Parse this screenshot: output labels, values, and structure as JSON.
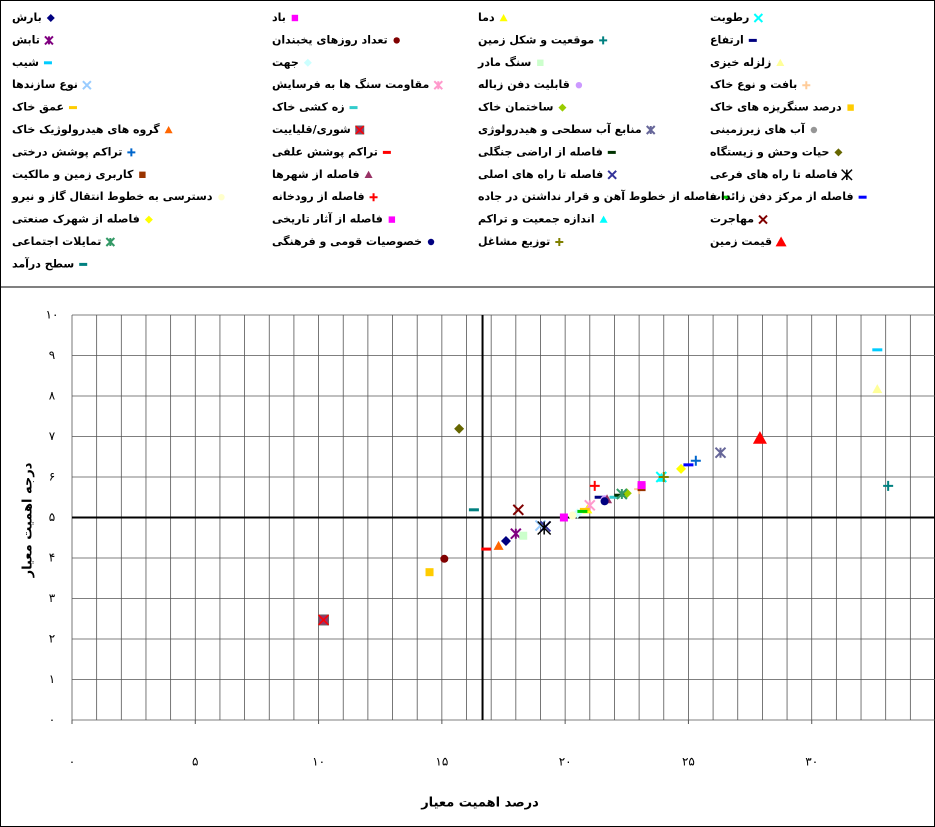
{
  "chart_data": {
    "type": "scatter",
    "xlabel": "درصد اهمیت معیار",
    "ylabel": "درجه اهمیت معیار",
    "xlim": [
      0,
      35
    ],
    "ylim": [
      0,
      10
    ],
    "xticks": [
      {
        "value": 0,
        "label": "۰"
      },
      {
        "value": 5,
        "label": "۵"
      },
      {
        "value": 10,
        "label": "۱۰"
      },
      {
        "value": 15,
        "label": "۱۵"
      },
      {
        "value": 20,
        "label": "۲۰"
      },
      {
        "value": 25,
        "label": "۲۵"
      },
      {
        "value": 30,
        "label": "۳۰"
      }
    ],
    "yticks": [
      {
        "value": 0,
        "label": "۰"
      },
      {
        "value": 1,
        "label": "۱"
      },
      {
        "value": 2,
        "label": "۲"
      },
      {
        "value": 3,
        "label": "۳"
      },
      {
        "value": 4,
        "label": "۴"
      },
      {
        "value": 5,
        "label": "۵"
      },
      {
        "value": 6,
        "label": "۶"
      },
      {
        "value": 7,
        "label": "۷"
      },
      {
        "value": 8,
        "label": "۸"
      },
      {
        "value": 9,
        "label": "۹"
      },
      {
        "value": 10,
        "label": "۱۰"
      }
    ],
    "grid": true,
    "x_grid_step": 1,
    "x_reference": 16.65,
    "y_reference": 5,
    "legend": "top",
    "series": [
      {
        "name": "بارش",
        "color": "#000080",
        "marker": "diamond",
        "x": [
          17.6
        ],
        "values": [
          4.42
        ]
      },
      {
        "name": "باد",
        "color": "#ff00ff",
        "marker": "square",
        "x": [
          19.95
        ],
        "values": [
          5.0
        ]
      },
      {
        "name": "دما",
        "color": "#ffff00",
        "marker": "triangle",
        "x": [
          20.9
        ],
        "values": [
          5.2
        ]
      },
      {
        "name": "رطوبت",
        "color": "#00ffff",
        "marker": "x",
        "x": [
          23.9
        ],
        "values": [
          6.0
        ]
      },
      {
        "name": "تابش",
        "color": "#800080",
        "marker": "star",
        "x": [
          18.0
        ],
        "values": [
          4.6
        ]
      },
      {
        "name": "تعداد روزهای یخبندان",
        "color": "#800000",
        "marker": "circle",
        "x": [
          15.1
        ],
        "values": [
          3.98
        ]
      },
      {
        "name": "موقعیت و شکل زمین",
        "color": "#008080",
        "marker": "plus",
        "x": [
          33.1
        ],
        "values": [
          5.78
        ]
      },
      {
        "name": "ارتفاع",
        "color": "#000080",
        "marker": "dash",
        "x": [
          21.4
        ],
        "values": [
          5.5
        ]
      },
      {
        "name": "شیب",
        "color": "#00ccff",
        "marker": "dash",
        "x": [
          32.66
        ],
        "values": [
          9.14
        ]
      },
      {
        "name": "جهت",
        "color": "#ccffff",
        "marker": "diamond",
        "x": [
          20.5
        ],
        "values": [
          5.1
        ]
      },
      {
        "name": "سنگ مادر",
        "color": "#ccffcc",
        "marker": "square",
        "x": [
          18.3
        ],
        "values": [
          4.55
        ]
      },
      {
        "name": "زلزله خیزی",
        "color": "#ffff99",
        "marker": "triangle",
        "x": [
          32.66
        ],
        "values": [
          8.17
        ]
      },
      {
        "name": "نوع سازندها",
        "color": "#99ccff",
        "marker": "x",
        "x": [
          19.0
        ],
        "values": [
          4.8
        ]
      },
      {
        "name": "مقاومت سنگ ها به فرسایش",
        "color": "#ff99cc",
        "marker": "star",
        "x": [
          21.0
        ],
        "values": [
          5.3
        ]
      },
      {
        "name": "قابلیت دفن زباله",
        "color": "#cc99ff",
        "marker": "circle",
        "x": [
          21.6
        ],
        "values": [
          5.45
        ]
      },
      {
        "name": "بافت و نوع خاک",
        "color": "#ffcc99",
        "marker": "plus",
        "x": [
          23.0
        ],
        "values": [
          5.7
        ]
      },
      {
        "name": "عمق خاک",
        "color": "#ffcc00",
        "marker": "dash",
        "x": [
          20.8
        ],
        "values": [
          5.2
        ]
      },
      {
        "name": "زه کشی خاک",
        "color": "#33cccc",
        "marker": "dash",
        "x": [
          22.0
        ],
        "values": [
          5.5
        ]
      },
      {
        "name": "ساختمان خاک",
        "color": "#99cc00",
        "marker": "diamond",
        "x": [
          22.5
        ],
        "values": [
          5.6
        ]
      },
      {
        "name": "درصد سنگریزه های خاک",
        "color": "#ffcc00",
        "marker": "square",
        "x": [
          14.5
        ],
        "values": [
          3.65
        ]
      },
      {
        "name": "گروه های هیدرولوژیک خاک",
        "color": "#ff6600",
        "marker": "triangle",
        "x": [
          17.3
        ],
        "values": [
          4.3
        ]
      },
      {
        "name": "شوری/قلیاییت",
        "color": "#993366",
        "marker": "squarex",
        "x": [
          10.2
        ],
        "values": [
          2.47
        ]
      },
      {
        "name": "منابع آب سطحی و هیدرولوژی",
        "color": "#666699",
        "marker": "star",
        "x": [
          26.3
        ],
        "values": [
          6.6
        ]
      },
      {
        "name": "آب های زیرزمینی",
        "color": "#969696",
        "marker": "circle",
        "x": [
          21.6
        ],
        "values": [
          5.4
        ]
      },
      {
        "name": "تراکم پوشش درختی",
        "color": "#0066cc",
        "marker": "plus",
        "x": [
          25.3
        ],
        "values": [
          6.4
        ]
      },
      {
        "name": "تراکم پوشش علفی",
        "color": "#ff0000",
        "marker": "dash",
        "x": [
          16.8
        ],
        "values": [
          4.22
        ]
      },
      {
        "name": "فاصله از اراضی جنگلی",
        "color": "#003300",
        "marker": "dash",
        "x": [
          22.2
        ],
        "values": [
          5.55
        ]
      },
      {
        "name": "حیات وحش و زیستگاه",
        "color": "#666600",
        "marker": "diamond",
        "x": [
          15.7
        ],
        "values": [
          7.19
        ]
      },
      {
        "name": "کاربری زمین و مالکیت",
        "color": "#993300",
        "marker": "square",
        "x": [
          23.1
        ],
        "values": [
          5.75
        ]
      },
      {
        "name": "فاصله از شهرها",
        "color": "#993366",
        "marker": "triangle",
        "x": [
          21.7
        ],
        "values": [
          5.45
        ]
      },
      {
        "name": "فاصله تا راه های اصلی",
        "color": "#333399",
        "marker": "x",
        "x": [
          19.2
        ],
        "values": [
          4.78
        ]
      },
      {
        "name": "فاصله تا راه های فرعی",
        "color": "#000000",
        "marker": "asterisk",
        "x": [
          19.15
        ],
        "values": [
          4.74
        ]
      },
      {
        "name": "دسترسی به خطوط انتقال گاز و نیرو",
        "color": "#ffffcc",
        "marker": "circle",
        "x": [
          20.3
        ],
        "values": [
          5.05
        ]
      },
      {
        "name": "فاصله از رودخانه",
        "color": "#ff0000",
        "marker": "plus",
        "x": [
          21.2
        ],
        "values": [
          5.78
        ]
      },
      {
        "name": "فاصله از خطوط آهن و قرار نداشتن در جاده",
        "color": "#00cc00",
        "marker": "dash",
        "x": [
          20.7
        ],
        "values": [
          5.15
        ]
      },
      {
        "name": "فاصله از مرکز دفن زائدات",
        "color": "#0000ff",
        "marker": "dash",
        "x": [
          25.0
        ],
        "values": [
          6.3
        ]
      },
      {
        "name": "فاصله از شهرک صنعتی",
        "color": "#ffff00",
        "marker": "diamond",
        "x": [
          24.7
        ],
        "values": [
          6.2
        ]
      },
      {
        "name": "فاصله از آثار تاریخی",
        "color": "#ff00ff",
        "marker": "square",
        "x": [
          23.1
        ],
        "values": [
          5.8
        ]
      },
      {
        "name": "اندازه جمعیت و تراکم",
        "color": "#00ffff",
        "marker": "triangle",
        "x": [
          23.9
        ],
        "values": [
          5.98
        ]
      },
      {
        "name": "مهاجرت",
        "color": "#800000",
        "marker": "x",
        "x": [
          18.1
        ],
        "values": [
          5.19
        ]
      },
      {
        "name": "تمایلات اجتماعی",
        "color": "#339966",
        "marker": "star",
        "x": [
          22.3
        ],
        "values": [
          5.58
        ]
      },
      {
        "name": "خصوصیات قومی و فرهنگی",
        "color": "#000080",
        "marker": "circle",
        "x": [
          21.6
        ],
        "values": [
          5.4
        ]
      },
      {
        "name": "توزیع مشاغل",
        "color": "#808000",
        "marker": "plus",
        "x": [
          24.0
        ],
        "values": [
          6.0
        ]
      },
      {
        "name": "قیمت زمین",
        "color": "#ff0000",
        "marker": "triangle",
        "marker_size": 14,
        "x": [
          27.9
        ],
        "values": [
          6.96
        ]
      },
      {
        "name": "سطح درآمد",
        "color": "#008080",
        "marker": "dash",
        "x": [
          16.3
        ],
        "values": [
          5.19
        ]
      }
    ]
  }
}
